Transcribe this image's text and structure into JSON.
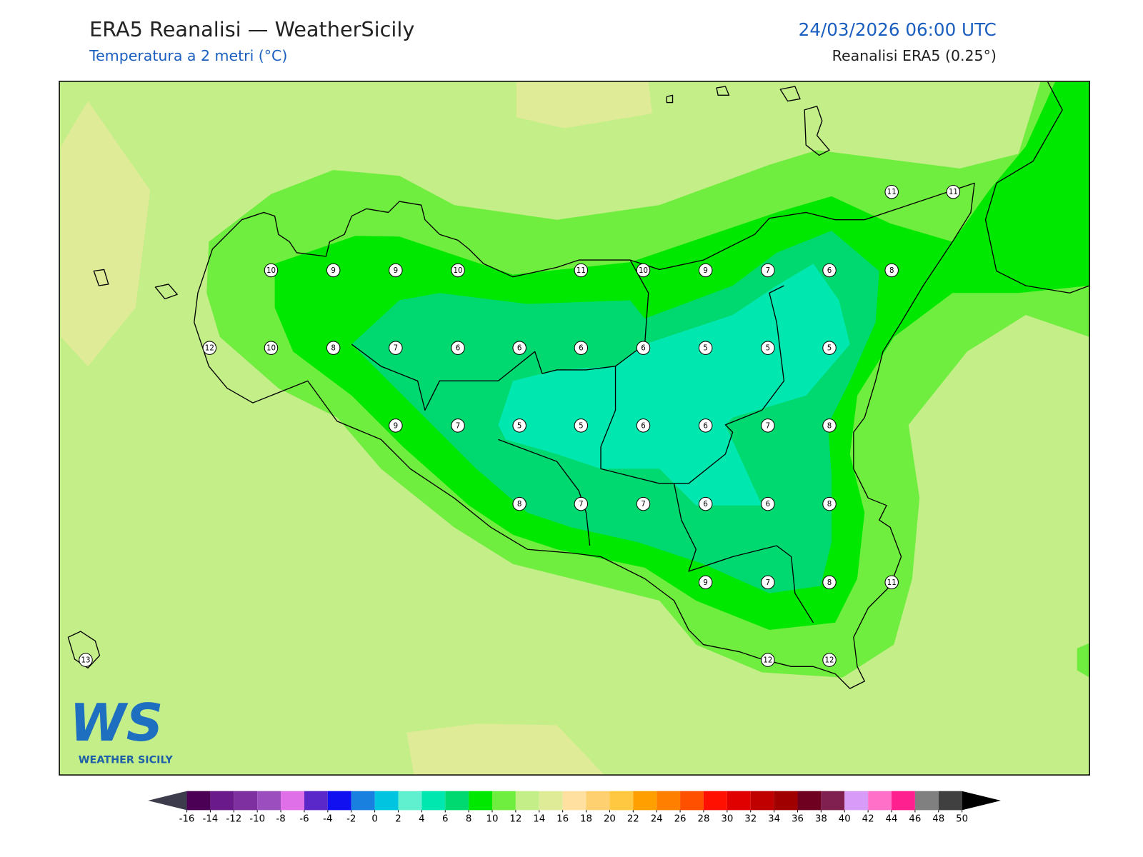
{
  "header": {
    "title": "ERA5 Reanalisi — WeatherSicily",
    "subtitle": "Temperatura a 2 metri (°C)",
    "datetime": "24/03/2026 06:00 UTC",
    "source": "Reanalisi ERA5 (0.25°)"
  },
  "stations": [
    10,
    9,
    9,
    10,
    11,
    10,
    9,
    7,
    6,
    8,
    11,
    11,
    12,
    10,
    8,
    7,
    6,
    6,
    6,
    6,
    5,
    5,
    5,
    9,
    7,
    5,
    5,
    6,
    6,
    7,
    8,
    8,
    7,
    7,
    6,
    6,
    8,
    9,
    7,
    8,
    11,
    13,
    12,
    12
  ],
  "logo": {
    "mark": "WS",
    "name": "WEATHER SICILY"
  },
  "colorbar": {
    "ticks": [
      -16,
      -14,
      -12,
      -10,
      -8,
      -6,
      -4,
      -2,
      0,
      2,
      4,
      6,
      8,
      10,
      12,
      14,
      16,
      18,
      20,
      22,
      24,
      26,
      28,
      30,
      32,
      34,
      36,
      38,
      40,
      42,
      44,
      46,
      48,
      50
    ],
    "colors": [
      "#4b0055",
      "#6a1a8a",
      "#7e2fa0",
      "#9b4fbf",
      "#e070e8",
      "#5a28c8",
      "#1010f0",
      "#1a80e0",
      "#00c4e0",
      "#60f0d0",
      "#00e8b0",
      "#00d870",
      "#00e800",
      "#70ee40",
      "#c4ee88",
      "#e0eb98",
      "#ffe0a0",
      "#ffd070",
      "#ffc840",
      "#ffa000",
      "#ff8000",
      "#ff5000",
      "#ff1000",
      "#e00000",
      "#c00000",
      "#a00000",
      "#700020",
      "#802050",
      "#d89cf8",
      "#ff70c8",
      "#ff2090",
      "#808080",
      "#404040"
    ],
    "under": "#3c3c4c",
    "over": "#000000"
  }
}
